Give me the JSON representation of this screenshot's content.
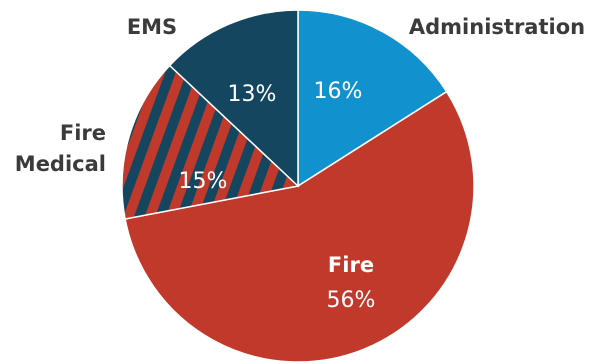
{
  "chart_data": {
    "type": "pie",
    "title": "",
    "slices": [
      {
        "label": "Administration",
        "value": 16,
        "value_label": "16%",
        "color": "#1192cf",
        "pattern": "solid"
      },
      {
        "label": "Fire",
        "value": 56,
        "value_label": "56%",
        "color": "#c0392b",
        "pattern": "solid"
      },
      {
        "label": "Fire Medical",
        "label_lines": [
          "Fire",
          "Medical"
        ],
        "value": 15,
        "value_label": "15%",
        "color": "#c0392b",
        "stripe_color": "#14465f",
        "pattern": "diagonal-stripes"
      },
      {
        "label": "EMS",
        "value": 13,
        "value_label": "13%",
        "color": "#14465f",
        "pattern": "solid"
      }
    ],
    "slice_border_color": "#ffffff"
  }
}
